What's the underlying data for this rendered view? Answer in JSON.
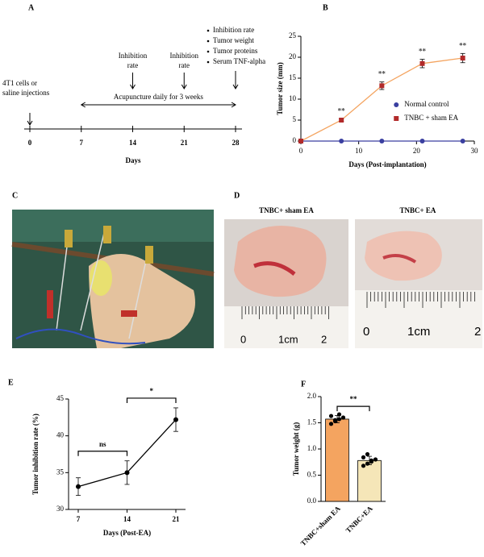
{
  "timeline": {
    "label": "A",
    "ticks": [
      0,
      7,
      14,
      21,
      28
    ],
    "axis_label": "Days",
    "period": {
      "from": 7,
      "to": 28,
      "label": "Acupuncture daily for 3 weeks"
    },
    "events": [
      {
        "day": 0,
        "lines": [
          "4T1 cells or",
          "saline injections"
        ]
      },
      {
        "day": 14,
        "lines": [
          "Inhibition",
          "rate"
        ]
      },
      {
        "day": 21,
        "lines": [
          "Inhibition",
          "rate"
        ]
      },
      {
        "day": 28,
        "bullets": [
          "Inhibition rate",
          "Tumor weight",
          "Tumor proteins",
          "Serum TNF-alpha"
        ]
      }
    ]
  },
  "photo_c": {
    "label": "C"
  },
  "photo_d": {
    "label": "D",
    "images": [
      "TNBC+ sham EA",
      "TNBC+ EA"
    ],
    "ruler": [
      "0",
      "1cm",
      "2"
    ]
  },
  "chart_data": [
    {
      "type": "line",
      "panel": "B",
      "x_label": "Days (Post-implantation)",
      "y_label": "Tumor size (mm)",
      "x": [
        0,
        7,
        14,
        21,
        28
      ],
      "xlim": [
        0,
        30
      ],
      "xticks": [
        0,
        10,
        20,
        30
      ],
      "ylim": [
        0,
        25
      ],
      "yticks": [
        0,
        5,
        10,
        15,
        20,
        25
      ],
      "legend": "center right",
      "series": [
        {
          "name": "Normal control",
          "color": "#3a3fa0",
          "line_color": "#3a3fa0",
          "marker": "circle",
          "values": [
            0,
            0,
            0,
            0,
            0
          ]
        },
        {
          "name": "TNBC + sham EA",
          "color": "#b22a2a",
          "line_color": "#f4a460",
          "marker": "square",
          "values": [
            0,
            5,
            13.2,
            18.5,
            19.8
          ],
          "errors": [
            0,
            0.3,
            0.9,
            1.0,
            1.1
          ],
          "significance": [
            null,
            "**",
            "**",
            "**",
            "**"
          ]
        }
      ]
    },
    {
      "type": "line",
      "panel": "E",
      "x_label": "Days (Post-EA)",
      "y_label": "Tumor inhibition rate (%)",
      "categories": [
        "7",
        "14",
        "21"
      ],
      "ylim": [
        30,
        45
      ],
      "yticks": [
        30,
        35,
        40,
        45
      ],
      "series": [
        {
          "color": "#000000",
          "line_color": "#000000",
          "marker": "circle",
          "values": [
            33.1,
            35.0,
            42.2
          ],
          "errors": [
            1.2,
            1.6,
            1.6
          ]
        }
      ],
      "comparisons": [
        "ns",
        "*"
      ]
    },
    {
      "type": "bar",
      "panel": "F",
      "y_label": "Tumor weight (g)",
      "categories": [
        "TNBC+sham EA",
        "TNBC+EA"
      ],
      "colors": [
        "#f4a460",
        "#f5e6b8"
      ],
      "values": [
        1.57,
        0.78
      ],
      "errors": [
        0.07,
        0.08
      ],
      "points": [
        [
          1.48,
          1.53,
          1.57,
          1.6,
          1.63,
          1.55,
          1.66
        ],
        [
          0.68,
          0.72,
          0.76,
          0.8,
          0.84,
          0.9,
          0.78
        ]
      ],
      "ylim": [
        0,
        2.0
      ],
      "yticks": [
        {
          "value": 0,
          "label": "0.0"
        },
        {
          "value": 0.5,
          "label": "0.5"
        },
        {
          "value": 1.0,
          "label": "1.0"
        },
        {
          "value": 1.5,
          "label": "1.5"
        },
        {
          "value": 2.0,
          "label": "2.0"
        }
      ],
      "comparison": "**"
    }
  ]
}
